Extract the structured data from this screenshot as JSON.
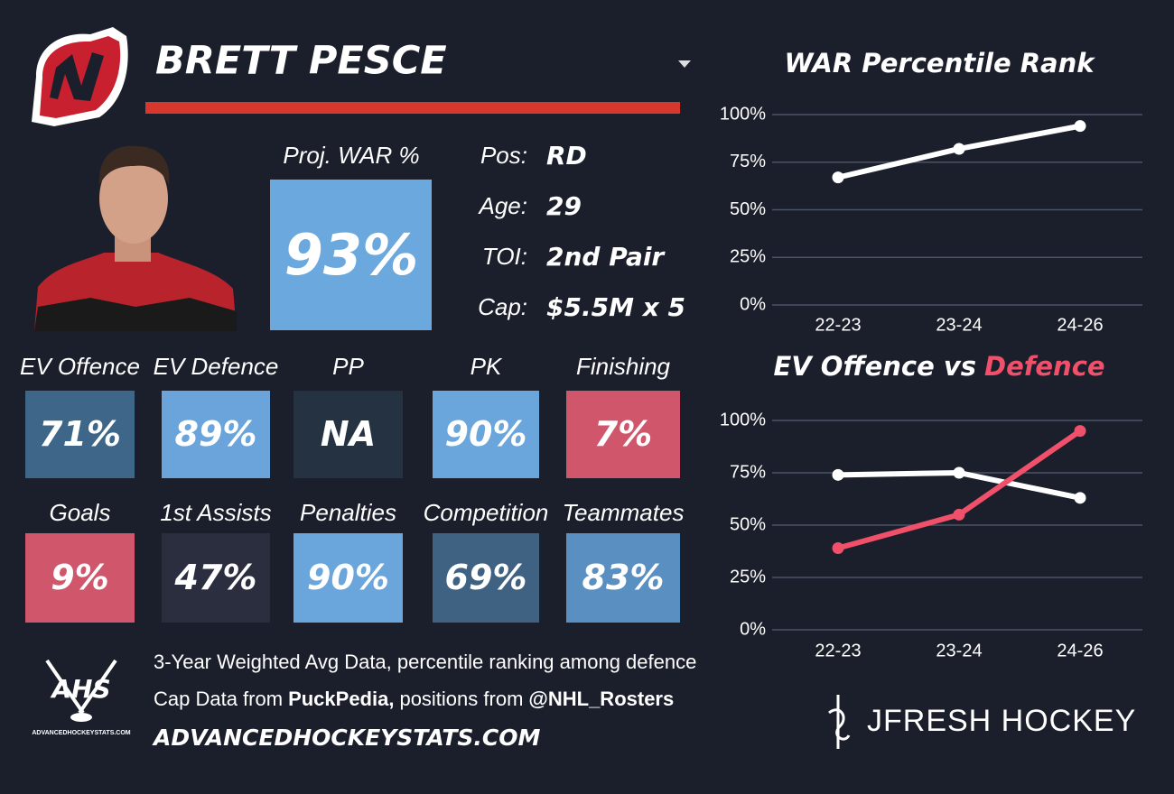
{
  "header": {
    "name": "BRETT PESCE"
  },
  "projection": {
    "label": "Proj. WAR %",
    "value": "93%",
    "color": "#6aa8de"
  },
  "bio": [
    {
      "label": "Pos:",
      "value": "RD"
    },
    {
      "label": "Age:",
      "value": "29"
    },
    {
      "label": "TOI:",
      "value": "2nd Pair"
    },
    {
      "label": "Cap:",
      "value": "$5.5M x 5"
    }
  ],
  "tiles": [
    {
      "label": "EV Offence",
      "value": "71%",
      "color": "#3e6688"
    },
    {
      "label": "EV Defence",
      "value": "89%",
      "color": "#6aa4da"
    },
    {
      "label": "PP",
      "value": "NA",
      "color": "#243241"
    },
    {
      "label": "PK",
      "value": "90%",
      "color": "#6aa6dc"
    },
    {
      "label": "Finishing",
      "value": "7%",
      "color": "#cf566b"
    },
    {
      "label": "Goals",
      "value": "9%",
      "color": "#cf566b"
    },
    {
      "label": "1st Assists",
      "value": "47%",
      "color": "#2a2e3f"
    },
    {
      "label": "Penalties",
      "value": "90%",
      "color": "#6aa6dc"
    },
    {
      "label": "Competition",
      "value": "69%",
      "color": "#3f6182"
    },
    {
      "label": "Teammates",
      "value": "83%",
      "color": "#5a8fc2"
    }
  ],
  "footer": {
    "line1": "3-Year Weighted Avg Data, percentile ranking among defence",
    "line2": [
      {
        "text": "Cap Data from",
        "bold": false
      },
      {
        "text": "PuckPedia,",
        "bold": true
      },
      {
        "text": "positions from",
        "bold": false
      },
      {
        "text": "@NHL_Rosters",
        "bold": true
      }
    ],
    "url": "ADVANCEDHOCKEYSTATS.COM",
    "ahs_logo": "AHS",
    "ahs_small": "ADVANCEDHOCKEYSTATS.COM",
    "brand": "JFRESH HOCKEY"
  },
  "chart_data": [
    {
      "type": "line",
      "title": "WAR Percentile Rank",
      "categories": [
        "22-23",
        "23-24",
        "24-26"
      ],
      "series": [
        {
          "color": "#ffffff",
          "values": [
            67,
            82,
            94
          ]
        }
      ],
      "ylim": [
        0,
        100
      ],
      "yticks": [
        {
          "value": 0,
          "label": "0%"
        },
        {
          "value": 25,
          "label": "25%"
        },
        {
          "value": 50,
          "label": "50%"
        },
        {
          "value": 75,
          "label": "75%"
        },
        {
          "value": 100,
          "label": "100%"
        }
      ],
      "grid": true
    },
    {
      "type": "line",
      "title": "EV Offence vs",
      "title_highlight": "Defence",
      "title_highlight_color": "#f0506a",
      "categories": [
        "22-23",
        "23-24",
        "24-26"
      ],
      "series": [
        {
          "color": "#ffffff",
          "values": [
            74,
            75,
            63
          ]
        },
        {
          "color": "#f0506a",
          "values": [
            39,
            55,
            95
          ]
        }
      ],
      "ylim": [
        0,
        100
      ],
      "yticks": [
        {
          "value": 0,
          "label": "0%"
        },
        {
          "value": 25,
          "label": "25%"
        },
        {
          "value": 50,
          "label": "50%"
        },
        {
          "value": 75,
          "label": "75%"
        },
        {
          "value": 100,
          "label": "100%"
        }
      ],
      "grid": true
    }
  ]
}
